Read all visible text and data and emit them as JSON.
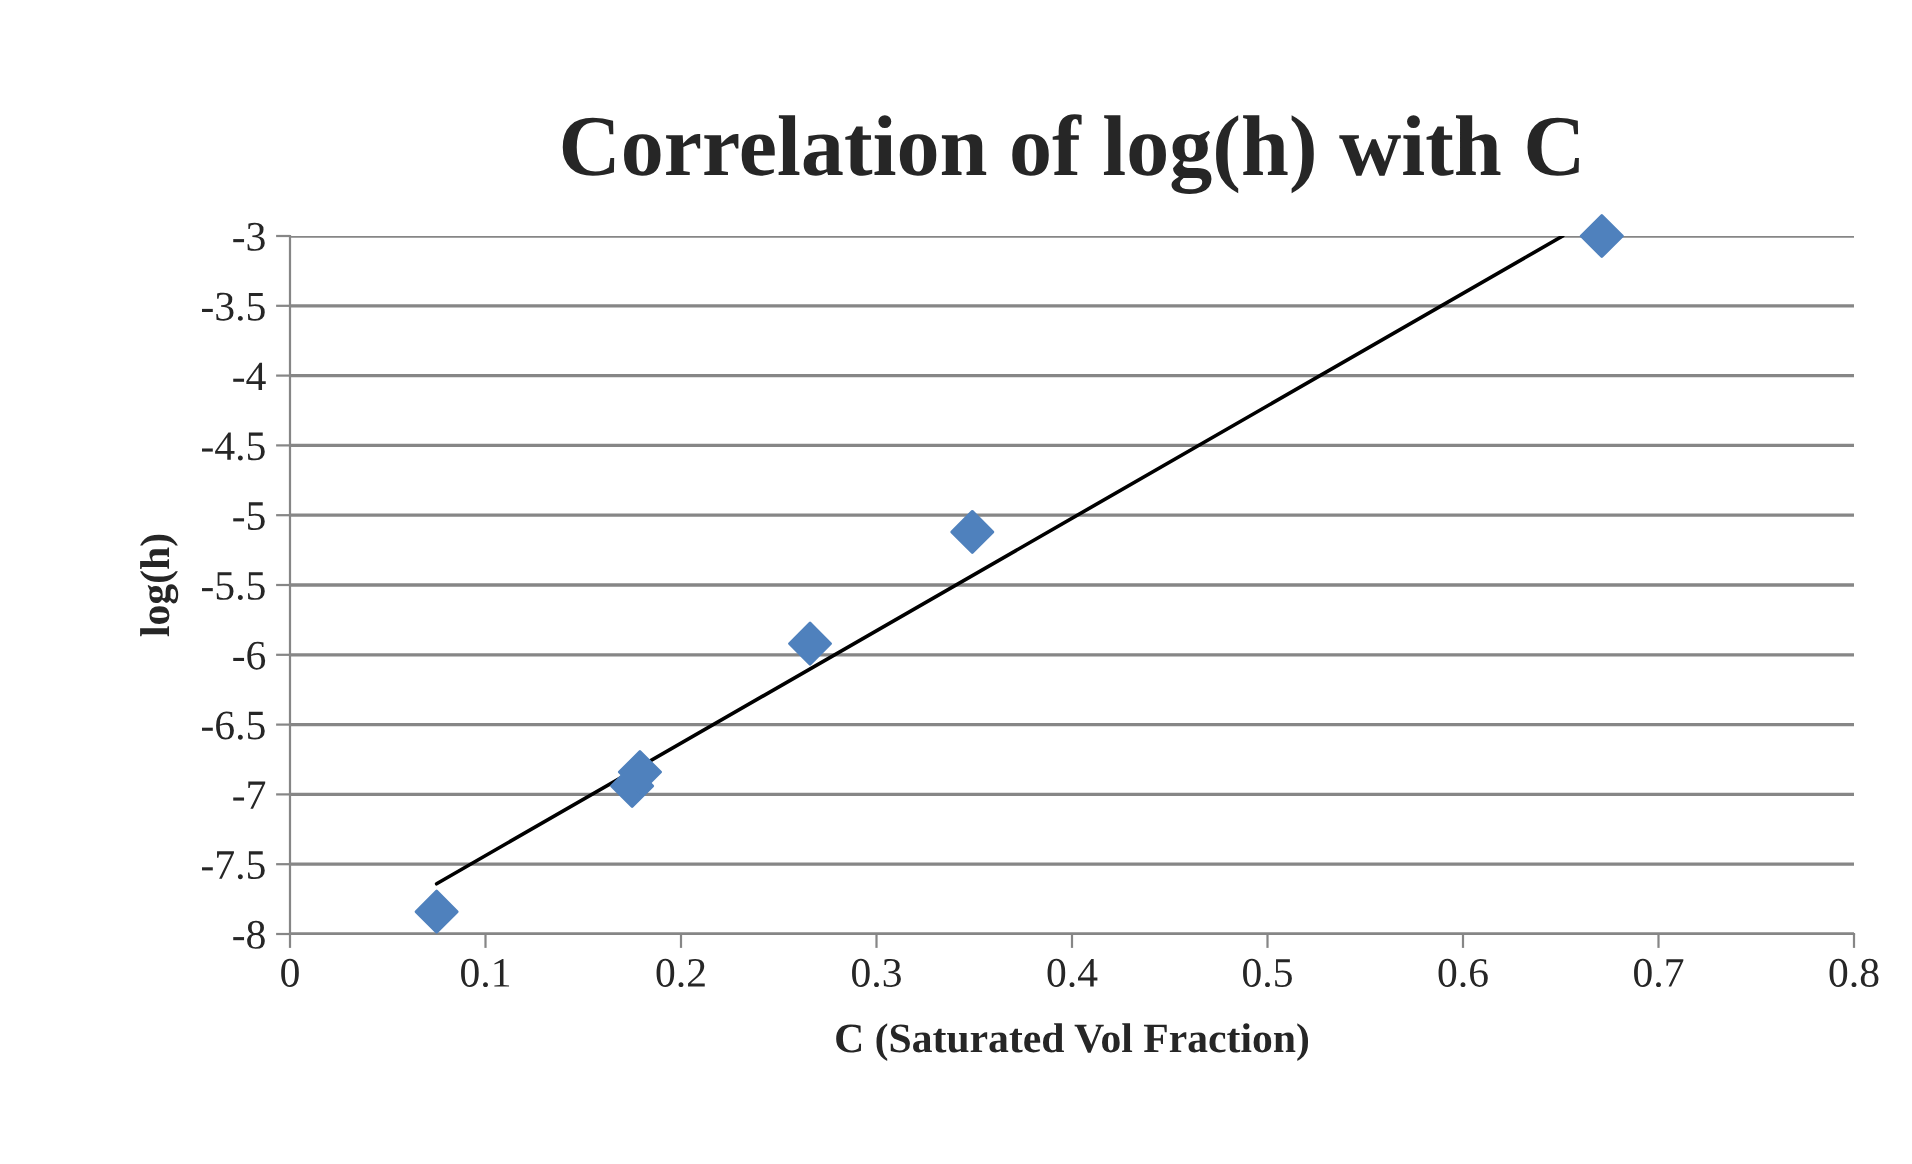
{
  "chart_data": {
    "type": "scatter",
    "title": "Correlation of log(h) with C",
    "xlabel": "C (Saturated Vol Fraction)",
    "ylabel": "log(h)",
    "xlim": [
      0,
      0.8
    ],
    "xticks": [
      0,
      0.1,
      0.2,
      0.3,
      0.4,
      0.5,
      0.6,
      0.7,
      0.8
    ],
    "ylim": [
      -8,
      -3
    ],
    "yticks": [
      -8,
      -7.5,
      -7,
      -6.5,
      -6,
      -5.5,
      -5,
      -4.5,
      -4,
      -3.5,
      -3
    ],
    "grid": "y",
    "legend": false,
    "marker": "diamond",
    "series": [
      {
        "color": "#4f81bd",
        "x": [
          0.075,
          0.175,
          0.179,
          0.266,
          0.349,
          0.671
        ],
        "values": [
          -7.84,
          -6.94,
          -6.84,
          -5.92,
          -5.12,
          -3.0
        ]
      },
      {
        "type": "line",
        "color": "#000000",
        "marker": "none",
        "x": [
          0.075,
          0.651
        ],
        "values": [
          -7.64,
          -3.0
        ]
      }
    ]
  }
}
